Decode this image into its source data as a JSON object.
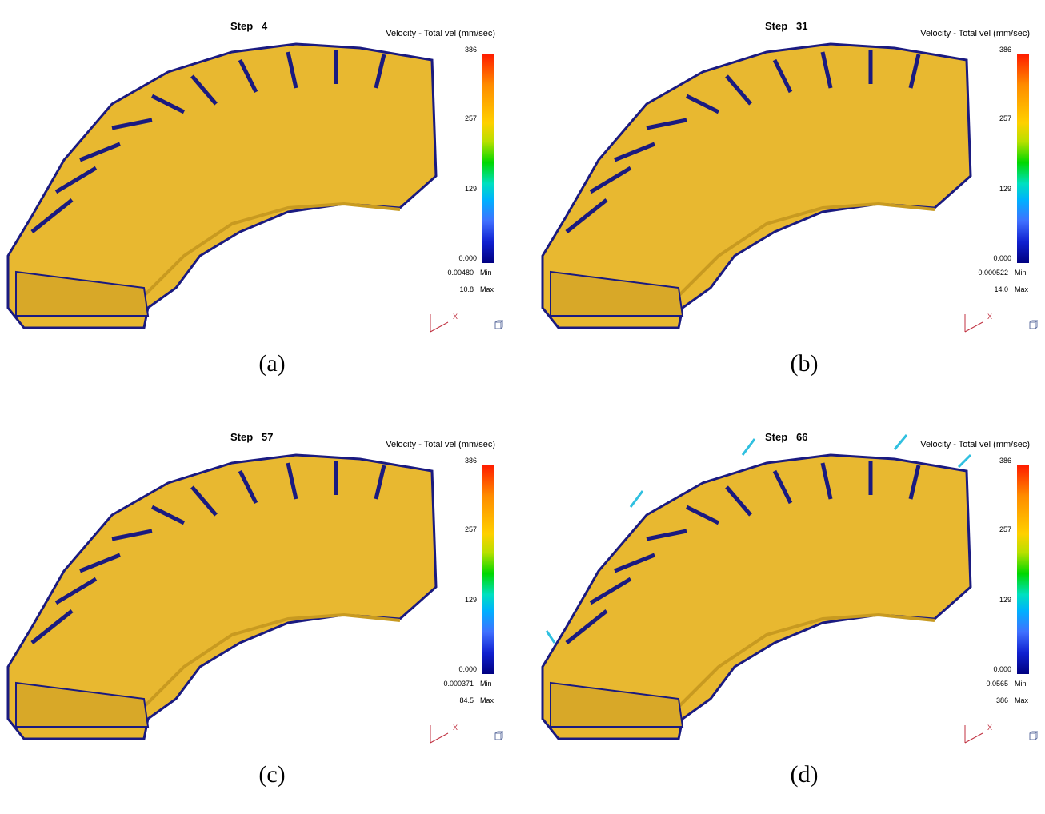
{
  "panels": [
    {
      "step_label": "Step   4",
      "legend_title": "Velocity - Total vel (mm/sec)",
      "ticks": [
        "386",
        "257",
        "129",
        "0.000"
      ],
      "min_value": "0.00480",
      "min_label": "Min",
      "max_value": "10.8",
      "max_label": "Max",
      "caption": "(a)",
      "axis_label": "X"
    },
    {
      "step_label": "Step   31",
      "legend_title": "Velocity - Total vel (mm/sec)",
      "ticks": [
        "386",
        "257",
        "129",
        "0.000"
      ],
      "min_value": "0.000522",
      "min_label": "Min",
      "max_value": "14.0",
      "max_label": "Max",
      "caption": "(b)",
      "axis_label": "X"
    },
    {
      "step_label": "Step   57",
      "legend_title": "Velocity - Total vel (mm/sec)",
      "ticks": [
        "386",
        "257",
        "129",
        "0.000"
      ],
      "min_value": "0.000371",
      "min_label": "Min",
      "max_value": "84.5",
      "max_label": "Max",
      "caption": "(c)",
      "axis_label": "X"
    },
    {
      "step_label": "Step   66",
      "legend_title": "Velocity - Total vel (mm/sec)",
      "ticks": [
        "386",
        "257",
        "129",
        "0.000"
      ],
      "min_value": "0.0565",
      "min_label": "Min",
      "max_value": "386",
      "max_label": "Max",
      "caption": "(d)",
      "axis_label": "X"
    }
  ],
  "colors": {
    "part_surface": "#e8b830",
    "vector_arrows": "#1a1a80",
    "fast_vectors": "#30c0e0",
    "axis_lines": "#c03040"
  }
}
